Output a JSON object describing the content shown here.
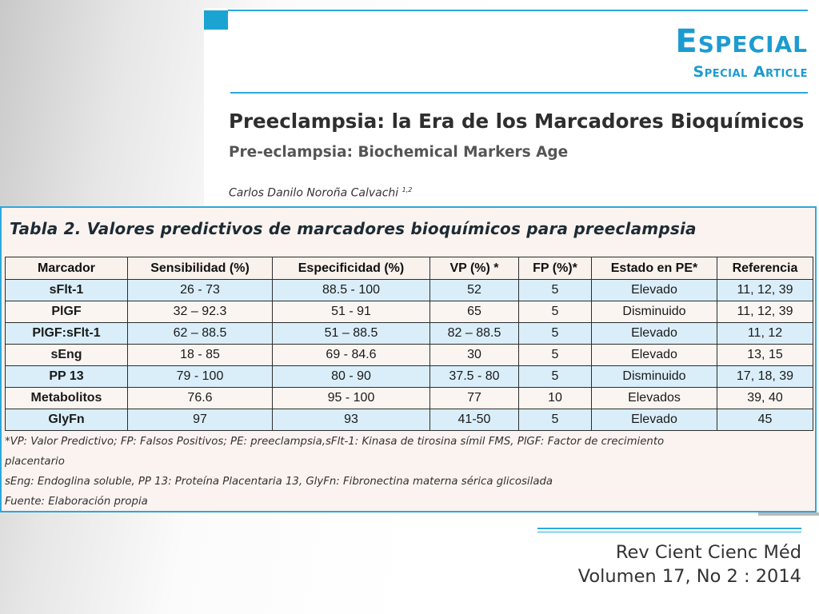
{
  "header": {
    "section": "Especial",
    "section_en": "Special Article",
    "title": "Preeclampsia: la Era de los Marcadores Bioquímicos",
    "subtitle": "Pre-eclampsia: Biochemical Markers Age",
    "author": "Carlos Danilo Noroña Calvachi",
    "author_affil": "1,2"
  },
  "table": {
    "caption": "Tabla 2. Valores predictivos de marcadores bioquímicos para preeclampsia",
    "columns": [
      "Marcador",
      "Sensibilidad (%)",
      "Especificidad (%)",
      "VP (%) *",
      "FP (%)*",
      "Estado en PE*",
      "Referencia"
    ],
    "rows": [
      [
        "sFlt-1",
        "26 - 73",
        "88.5 - 100",
        "52",
        "5",
        "Elevado",
        "11, 12, 39"
      ],
      [
        "PlGF",
        "32 – 92.3",
        "51 - 91",
        "65",
        "5",
        "Disminuido",
        "11, 12, 39"
      ],
      [
        "PlGF:sFlt-1",
        "62 – 88.5",
        "51 – 88.5",
        "82 – 88.5",
        "5",
        "Elevado",
        "11, 12"
      ],
      [
        "sEng",
        "18 - 85",
        "69 - 84.6",
        "30",
        "5",
        "Elevado",
        "13, 15"
      ],
      [
        "PP 13",
        "79 - 100",
        "80 - 90",
        "37.5 - 80",
        "5",
        "Disminuido",
        "17, 18, 39"
      ],
      [
        "Metabolitos",
        "76.6",
        "95 - 100",
        "77",
        "10",
        "Elevados",
        "39, 40"
      ],
      [
        "GlyFn",
        "97",
        "93",
        "41-50",
        "5",
        "Elevado",
        "45"
      ]
    ],
    "footnotes": [
      "*VP: Valor Predictivo; FP: Falsos Positivos; PE: preeclampsia,sFlt-1: Kinasa de tirosina símil FMS, PlGF: Factor de crecimiento",
      "placentario",
      "sEng: Endoglina soluble, PP 13: Proteína Placentaria 13, GlyFn: Fibronectina materna sérica glicosilada",
      "Fuente: Elaboración propia"
    ]
  },
  "journal": {
    "name": "Rev Cient Cienc Méd",
    "volume": "Volumen 17, No 2 : 2014"
  },
  "colors": {
    "accent": "#1d9bd0",
    "row_shade": "#d9eef9",
    "table_bg": "#fbf3ef"
  }
}
